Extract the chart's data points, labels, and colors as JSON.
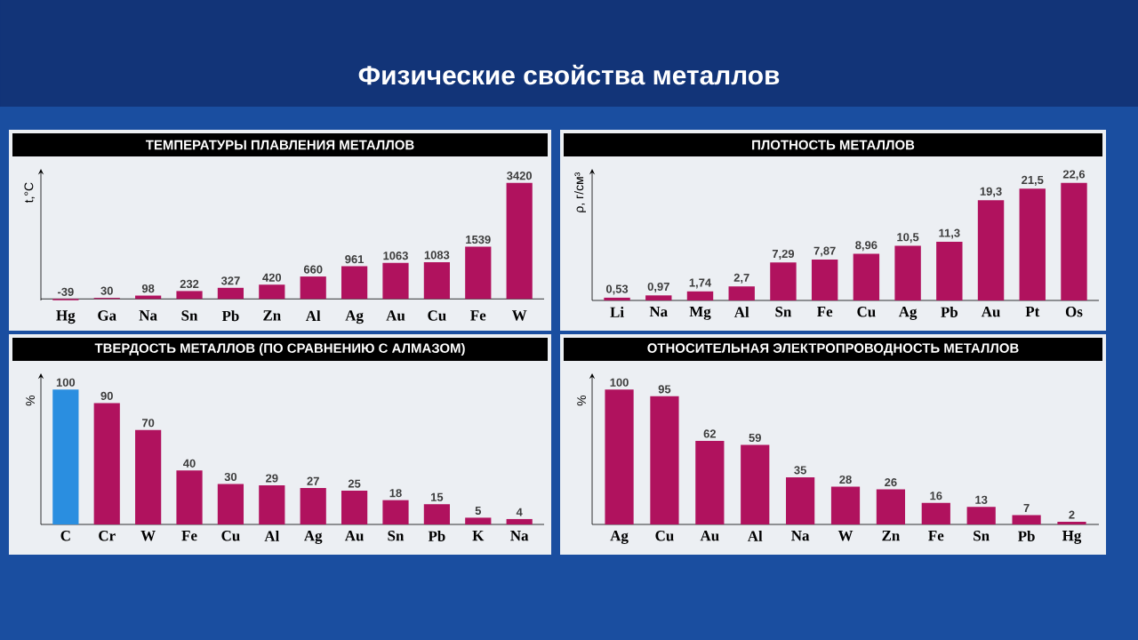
{
  "chart_data": [
    {
      "type": "bar",
      "title": "ТЕМПЕРАТУРЫ ПЛАВЛЕНИЯ МЕТАЛЛОВ",
      "annotations": [
        "Физические свойства металлов"
      ],
      "ylabel": "t,°C",
      "categories": [
        "Hg",
        "Ga",
        "Na",
        "Sn",
        "Pb",
        "Zn",
        "Al",
        "Ag",
        "Au",
        "Cu",
        "Fe",
        "W"
      ],
      "values": [
        -39,
        30,
        98,
        232,
        327,
        420,
        660,
        961,
        1063,
        1083,
        1539,
        3420
      ],
      "color": "#b0125e",
      "data_labels": true,
      "tick_labels": "x"
    },
    {
      "type": "bar",
      "title": "ПЛОТНОСТЬ МЕТАЛЛОВ",
      "ylabel": "ρ, г/см³",
      "categories": [
        "Li",
        "Na",
        "Mg",
        "Al",
        "Sn",
        "Fe",
        "Cu",
        "Ag",
        "Pb",
        "Au",
        "Pt",
        "Os"
      ],
      "values": [
        0.53,
        0.97,
        1.74,
        2.7,
        7.29,
        7.87,
        8.96,
        10.5,
        11.3,
        19.3,
        21.5,
        22.6
      ],
      "value_labels": [
        "0,53",
        "0,97",
        "1,74",
        "2,7",
        "7,29",
        "7,87",
        "8,96",
        "10,5",
        "11,3",
        "19,3",
        "21,5",
        "22,6"
      ],
      "color": "#b0125e",
      "tick_labels": "x"
    },
    {
      "type": "bar",
      "title": "ТВЕРДОСТЬ МЕТАЛЛОВ (ПО СРАВНЕНИЮ С АЛМАЗОМ)",
      "ylabel": "%",
      "categories": [
        "C",
        "Cr",
        "W",
        "Fe",
        "Cu",
        "Al",
        "Ag",
        "Au",
        "Sn",
        "Pb",
        "K",
        "Na"
      ],
      "values": [
        100,
        90,
        70,
        40,
        30,
        29,
        27,
        25,
        18,
        15,
        5,
        4
      ],
      "colors": [
        "#2a8ee0",
        "#b0125e",
        "#b0125e",
        "#b0125e",
        "#b0125e",
        "#b0125e",
        "#b0125e",
        "#b0125e",
        "#b0125e",
        "#b0125e",
        "#b0125e",
        "#b0125e"
      ],
      "data_labels": true,
      "tick_labels": "x"
    },
    {
      "type": "bar",
      "title": "ОТНОСИТЕЛЬНАЯ ЭЛЕКТРОПРОВОДНОСТЬ МЕТАЛЛОВ",
      "ylabel": "%",
      "categories": [
        "Ag",
        "Cu",
        "Au",
        "Al",
        "Na",
        "W",
        "Zn",
        "Fe",
        "Sn",
        "Pb",
        "Hg"
      ],
      "values": [
        100,
        95,
        62,
        59,
        35,
        28,
        26,
        16,
        13,
        7,
        2
      ],
      "color": "#b0125e",
      "data_labels": true,
      "tick_labels": "x"
    }
  ]
}
